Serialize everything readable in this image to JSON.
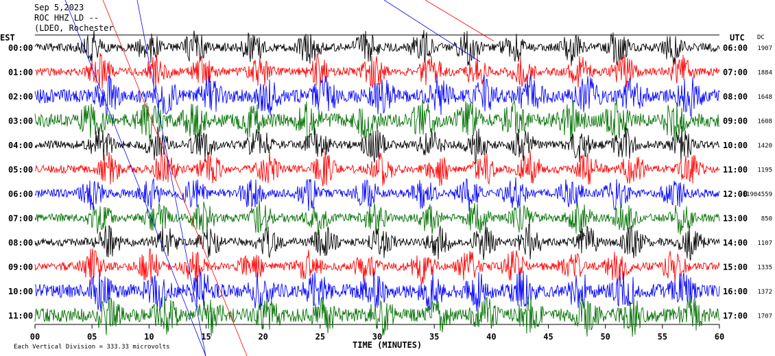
{
  "header": {
    "date": "Sep 5,2023",
    "station": "ROC HHZ LD --",
    "network": "(LDEO, Rochester"
  },
  "chart_data": {
    "type": "line",
    "left_axis_title": "EST",
    "right_axis_title": "UTC",
    "dc_title": "DC",
    "x_title": "TIME (MINUTES)",
    "x_ticks": [
      "00",
      "05",
      "10",
      "15",
      "20",
      "25",
      "30",
      "35",
      "40",
      "45",
      "50",
      "55",
      "60"
    ],
    "xlim": [
      0,
      60
    ],
    "rows": [
      {
        "est": "00:00",
        "utc": "06:00",
        "dc": "1907",
        "color": "#000000"
      },
      {
        "est": "01:00",
        "utc": "07:00",
        "dc": "1884",
        "color": "#ff0000"
      },
      {
        "est": "02:00",
        "utc": "08:00",
        "dc": "1648",
        "color": "#0000ff"
      },
      {
        "est": "03:00",
        "utc": "09:00",
        "dc": "1608",
        "color": "#007000"
      },
      {
        "est": "04:00",
        "utc": "10:00",
        "dc": "1420",
        "color": "#000000"
      },
      {
        "est": "05:00",
        "utc": "11:00",
        "dc": "1195",
        "color": "#ff0000"
      },
      {
        "est": "06:00",
        "utc": "12:00",
        "dc": "-11904559",
        "color": "#0000ff"
      },
      {
        "est": "07:00",
        "utc": "13:00",
        "dc": "850",
        "color": "#007000"
      },
      {
        "est": "08:00",
        "utc": "14:00",
        "dc": "1107",
        "color": "#000000"
      },
      {
        "est": "09:00",
        "utc": "15:00",
        "dc": "1335",
        "color": "#ff0000"
      },
      {
        "est": "10:00",
        "utc": "16:00",
        "dc": "1372",
        "color": "#0000ff"
      },
      {
        "est": "11:00",
        "utc": "17:00",
        "dc": "1707",
        "color": "#007000"
      }
    ],
    "scale_note": "Each Vertical Division = 333.33 microvolts"
  }
}
